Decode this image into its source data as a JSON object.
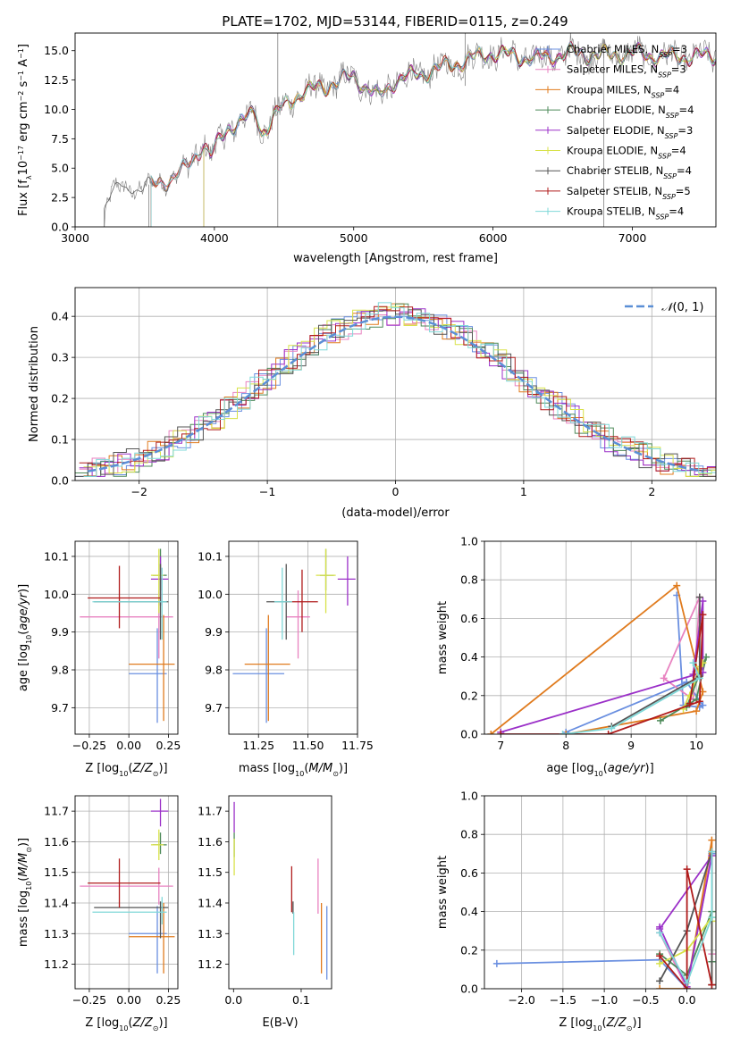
{
  "figure_title": "PLATE=1702, MJD=53144, FIBERID=0115, z=0.249",
  "colors": {
    "chabrier_miles": "#6a8fe0",
    "salpeter_miles": "#e882c0",
    "kroupa_miles": "#e07b1e",
    "chabrier_elodie": "#4e8a5a",
    "salpeter_elodie": "#9b30c8",
    "kroupa_elodie": "#d8e24a",
    "chabrier_stelib": "#555555",
    "salpeter_stelib": "#b01b1b",
    "kroupa_stelib": "#7fd8d8",
    "normal_curve": "#5b8fd6",
    "grid": "#b0b0b0",
    "data_spectrum": "#808080"
  },
  "chart_data": [
    {
      "id": "spectrum",
      "type": "line",
      "xlabel": "wavelength [Angstrom, rest frame]",
      "ylabel": "Flux [f_λ10^-17 erg cm^-2 s^-1 A^-1]",
      "xlim": [
        3000,
        7600
      ],
      "ylim": [
        0,
        16.5
      ],
      "xticks": [
        3000,
        4000,
        5000,
        6000,
        7000
      ],
      "yticks": [
        0.0,
        2.5,
        5.0,
        7.5,
        10.0,
        12.5,
        15.0
      ],
      "grid": false,
      "legend_position": "top-right",
      "spectrum_anchors": {
        "x": [
          3210,
          3260,
          3400,
          3550,
          3700,
          3800,
          3880,
          3920,
          3970,
          4100,
          4300,
          4340,
          4450,
          4600,
          4800,
          5000,
          5180,
          5300,
          5500,
          5700,
          5900,
          6000,
          6300,
          6560,
          6800,
          7000,
          7200
        ],
        "y": [
          1.6,
          3.1,
          3.3,
          3.5,
          4.2,
          5.0,
          6.3,
          7.2,
          6.0,
          8.5,
          9.6,
          8.0,
          9.7,
          11.3,
          12.0,
          12.8,
          11.0,
          12.5,
          13.1,
          13.8,
          14.5,
          14.8,
          14.3,
          14.8,
          14.6,
          14.8,
          14.5
        ]
      },
      "series": [
        {
          "name": "Chabrier MILES, N_SSP=3",
          "color_key": "chabrier_miles",
          "start": 3540
        },
        {
          "name": "Salpeter MILES, N_SSP=3",
          "color_key": "salpeter_miles",
          "start": 3540
        },
        {
          "name": "Kroupa MILES, N_SSP=4",
          "color_key": "kroupa_miles",
          "start": 3540
        },
        {
          "name": "Chabrier ELODIE, N_SSP=4",
          "color_key": "chabrier_elodie",
          "start": 3920
        },
        {
          "name": "Salpeter ELODIE, N_SSP=3",
          "color_key": "salpeter_elodie",
          "start": 3920
        },
        {
          "name": "Kroupa ELODIE, N_SSP=4",
          "color_key": "kroupa_elodie",
          "start": 3920
        },
        {
          "name": "Chabrier STELIB, N_SSP=4",
          "color_key": "chabrier_stelib",
          "start": 3210
        },
        {
          "name": "Salpeter STELIB, N_SSP=5",
          "color_key": "salpeter_stelib",
          "start": 3540
        },
        {
          "name": "Kroupa STELIB, N_SSP=4",
          "color_key": "kroupa_stelib",
          "start": 3540
        }
      ]
    },
    {
      "id": "residuals",
      "type": "histogram",
      "xlabel": "(data-model)/error",
      "ylabel": "Normed distribution",
      "xlim": [
        -2.5,
        2.5
      ],
      "ylim": [
        0,
        0.47
      ],
      "xticks": [
        -2,
        -1,
        0,
        1,
        2
      ],
      "yticks": [
        0.0,
        0.1,
        0.2,
        0.3,
        0.4
      ],
      "grid": true,
      "bin_width": 0.1,
      "legend": "N(0,1)",
      "legend_position": "top-right",
      "normal_curve": {
        "mean": 0,
        "sigma": 1,
        "x_range": [
          -2.4,
          2.4
        ]
      }
    },
    {
      "id": "age_vs_Z",
      "type": "errorbar",
      "xlabel": "Z [log10(Z/Z⊙)]",
      "ylabel": "age [log10(age/yr)]",
      "xlim": [
        -0.34,
        0.31
      ],
      "ylim": [
        9.63,
        10.14
      ],
      "xticks": [
        -0.25,
        0.0,
        0.25
      ],
      "xtick_labels": [
        "−0.25",
        "0.00",
        "0.25"
      ],
      "yticks": [
        9.7,
        9.8,
        9.9,
        10.0,
        10.1
      ],
      "grid": true,
      "points": [
        {
          "color_key": "chabrier_miles",
          "x": 0.18,
          "xerr": [
            0.18,
            0.06
          ],
          "y": 9.79,
          "yerr": [
            0.13,
            0.12
          ]
        },
        {
          "color_key": "salpeter_miles",
          "x": 0.19,
          "xerr": [
            0.5,
            0.09
          ],
          "y": 9.94,
          "yerr": [
            0.11,
            0.07
          ]
        },
        {
          "color_key": "kroupa_miles",
          "x": 0.22,
          "xerr": [
            0.22,
            0.07
          ],
          "y": 9.815,
          "yerr": [
            0.15,
            0.13
          ]
        },
        {
          "color_key": "chabrier_elodie",
          "x": 0.2,
          "xerr": [
            0.05,
            0.04
          ],
          "y": 10.05,
          "yerr": [
            0.04,
            0.07
          ]
        },
        {
          "color_key": "salpeter_elodie",
          "x": 0.2,
          "xerr": [
            0.06,
            0.05
          ],
          "y": 10.04,
          "yerr": [
            0.07,
            0.06
          ]
        },
        {
          "color_key": "kroupa_elodie",
          "x": 0.19,
          "xerr": [
            0.05,
            0.03
          ],
          "y": 10.05,
          "yerr": [
            0.1,
            0.07
          ]
        },
        {
          "color_key": "chabrier_stelib",
          "x": 0.2,
          "xerr": [
            0.42,
            0.05
          ],
          "y": 9.98,
          "yerr": [
            0.1,
            0.1
          ]
        },
        {
          "color_key": "salpeter_stelib",
          "x": -0.06,
          "xerr": [
            0.2,
            0.26
          ],
          "y": 9.99,
          "yerr": [
            0.08,
            0.085
          ]
        },
        {
          "color_key": "kroupa_stelib",
          "x": 0.21,
          "xerr": [
            0.44,
            0.03
          ],
          "y": 9.98,
          "yerr": [
            0.1,
            0.09
          ]
        }
      ]
    },
    {
      "id": "age_vs_mass",
      "type": "errorbar",
      "xlabel": "mass [log10(M/M⊙)]",
      "xlim": [
        11.1,
        11.75
      ],
      "ylim": [
        9.63,
        10.14
      ],
      "xticks": [
        11.25,
        11.5,
        11.75
      ],
      "xtick_labels": [
        "11.25",
        "11.50",
        "11.75"
      ],
      "yticks": [
        9.7,
        9.8,
        9.9,
        10.0,
        10.1
      ],
      "grid": true,
      "points": [
        {
          "color_key": "chabrier_miles",
          "x": 11.29,
          "xerr": [
            0.17,
            0.09
          ],
          "y": 9.79,
          "yerr": [
            0.13,
            0.12
          ]
        },
        {
          "color_key": "salpeter_miles",
          "x": 11.45,
          "xerr": [
            0.06,
            0.06
          ],
          "y": 9.94,
          "yerr": [
            0.11,
            0.07
          ]
        },
        {
          "color_key": "kroupa_miles",
          "x": 11.3,
          "xerr": [
            0.12,
            0.11
          ],
          "y": 9.815,
          "yerr": [
            0.15,
            0.13
          ]
        },
        {
          "color_key": "chabrier_elodie",
          "x": 11.59,
          "xerr": [
            0.03,
            0.04
          ],
          "y": 10.05,
          "yerr": [
            0.04,
            0.07
          ]
        },
        {
          "color_key": "salpeter_elodie",
          "x": 11.7,
          "xerr": [
            0.05,
            0.04
          ],
          "y": 10.04,
          "yerr": [
            0.07,
            0.06
          ]
        },
        {
          "color_key": "kroupa_elodie",
          "x": 11.59,
          "xerr": [
            0.05,
            0.05
          ],
          "y": 10.05,
          "yerr": [
            0.1,
            0.07
          ]
        },
        {
          "color_key": "chabrier_stelib",
          "x": 11.39,
          "xerr": [
            0.1,
            0.02
          ],
          "y": 9.98,
          "yerr": [
            0.1,
            0.1
          ]
        },
        {
          "color_key": "salpeter_stelib",
          "x": 11.47,
          "xerr": [
            0.08,
            0.08
          ],
          "y": 9.98,
          "yerr": [
            0.08,
            0.085
          ]
        },
        {
          "color_key": "kroupa_stelib",
          "x": 11.37,
          "xerr": [
            0.04,
            0.05
          ],
          "y": 9.98,
          "yerr": [
            0.1,
            0.09
          ]
        }
      ]
    },
    {
      "id": "mass_weight_vs_age",
      "type": "line",
      "xlabel": "age [log10(age/yr)]",
      "ylabel": "mass weight",
      "xlim": [
        6.75,
        10.3
      ],
      "ylim": [
        0,
        1.0
      ],
      "xticks": [
        7,
        8,
        9,
        10
      ],
      "yticks": [
        0.0,
        0.2,
        0.4,
        0.6,
        0.8,
        1.0
      ],
      "grid": true,
      "series": [
        {
          "color_key": "chabrier_miles",
          "x": [
            9.7,
            9.8,
            10.05,
            10.1,
            9.85,
            8.0
          ],
          "y": [
            0.72,
            0.15,
            0.14,
            0.15,
            0.27,
            0.01
          ]
        },
        {
          "color_key": "salpeter_miles",
          "x": [
            10.05,
            9.5,
            9.95,
            10.05
          ],
          "y": [
            0.71,
            0.29,
            0.18,
            0.71
          ]
        },
        {
          "color_key": "kroupa_miles",
          "x": [
            6.85,
            9.7,
            10.1,
            10.0,
            8.0
          ],
          "y": [
            0.0,
            0.77,
            0.22,
            0.12,
            0.0
          ]
        },
        {
          "color_key": "chabrier_elodie",
          "x": [
            9.45,
            10.0,
            10.15,
            9.85
          ],
          "y": [
            0.07,
            0.18,
            0.4,
            0.14
          ]
        },
        {
          "color_key": "salpeter_elodie",
          "x": [
            7.0,
            10.1,
            10.1,
            9.95
          ],
          "y": [
            0.01,
            0.32,
            0.69,
            0.31
          ]
        },
        {
          "color_key": "kroupa_elodie",
          "x": [
            9.8,
            10.1,
            10.05,
            9.9
          ],
          "y": [
            0.13,
            0.37,
            0.35,
            0.2
          ]
        },
        {
          "color_key": "chabrier_stelib",
          "x": [
            8.7,
            10.05,
            10.05
          ],
          "y": [
            0.04,
            0.3,
            0.71
          ]
        },
        {
          "color_key": "salpeter_stelib",
          "x": [
            7.0,
            8.65,
            10.05,
            10.1,
            9.9
          ],
          "y": [
            0.0,
            0.0,
            0.17,
            0.62,
            0.16
          ]
        },
        {
          "color_key": "kroupa_stelib",
          "x": [
            7.95,
            8.7,
            10.05,
            9.95
          ],
          "y": [
            0.0,
            0.03,
            0.29,
            0.37
          ]
        }
      ]
    },
    {
      "id": "mass_vs_Z",
      "type": "errorbar",
      "xlabel": "Z [log10(Z/Z⊙)]",
      "ylabel": "mass [log10(M/M⊙)]",
      "xlim": [
        -0.34,
        0.31
      ],
      "ylim": [
        11.12,
        11.75
      ],
      "xticks": [
        -0.25,
        0.0,
        0.25
      ],
      "xtick_labels": [
        "−0.25",
        "0.00",
        "0.25"
      ],
      "yticks": [
        11.2,
        11.3,
        11.4,
        11.5,
        11.6,
        11.7
      ],
      "grid": true,
      "points": [
        {
          "color_key": "chabrier_miles",
          "x": 0.18,
          "xerr": [
            0.18,
            0.06
          ],
          "y": 11.3,
          "yerr": [
            0.13,
            0.09
          ]
        },
        {
          "color_key": "salpeter_miles",
          "x": 0.19,
          "xerr": [
            0.5,
            0.09
          ],
          "y": 11.455,
          "yerr": [
            0.06,
            0.06
          ]
        },
        {
          "color_key": "kroupa_miles",
          "x": 0.22,
          "xerr": [
            0.22,
            0.07
          ],
          "y": 11.29,
          "yerr": [
            0.12,
            0.11
          ]
        },
        {
          "color_key": "chabrier_elodie",
          "x": 0.2,
          "xerr": [
            0.05,
            0.04
          ],
          "y": 11.59,
          "yerr": [
            0.03,
            0.04
          ]
        },
        {
          "color_key": "salpeter_elodie",
          "x": 0.2,
          "xerr": [
            0.06,
            0.05
          ],
          "y": 11.7,
          "yerr": [
            0.05,
            0.04
          ]
        },
        {
          "color_key": "kroupa_elodie",
          "x": 0.19,
          "xerr": [
            0.05,
            0.03
          ],
          "y": 11.59,
          "yerr": [
            0.05,
            0.05
          ]
        },
        {
          "color_key": "chabrier_stelib",
          "x": 0.2,
          "xerr": [
            0.42,
            0.05
          ],
          "y": 11.385,
          "yerr": [
            0.1,
            0.02
          ]
        },
        {
          "color_key": "salpeter_stelib",
          "x": -0.06,
          "xerr": [
            0.2,
            0.26
          ],
          "y": 11.465,
          "yerr": [
            0.08,
            0.08
          ]
        },
        {
          "color_key": "kroupa_stelib",
          "x": 0.21,
          "xerr": [
            0.44,
            0.03
          ],
          "y": 11.37,
          "yerr": [
            0.04,
            0.05
          ]
        }
      ]
    },
    {
      "id": "mass_vs_ebv",
      "type": "errorbar",
      "xlabel": "E(B-V)",
      "xlim": [
        -0.007,
        0.145
      ],
      "ylim": [
        11.12,
        11.75
      ],
      "xticks": [
        0.0,
        0.1
      ],
      "xtick_labels": [
        "0.0",
        "0.1"
      ],
      "yticks": [
        11.2,
        11.3,
        11.4,
        11.5,
        11.6,
        11.7
      ],
      "grid": false,
      "points": [
        {
          "color_key": "chabrier_miles",
          "x": 0.138,
          "y": 11.3,
          "yerr": [
            0.15,
            0.09
          ]
        },
        {
          "color_key": "salpeter_miles",
          "x": 0.125,
          "y": 11.455,
          "yerr": [
            0.09,
            0.09
          ]
        },
        {
          "color_key": "kroupa_miles",
          "x": 0.13,
          "y": 11.29,
          "yerr": [
            0.12,
            0.11
          ]
        },
        {
          "color_key": "chabrier_elodie",
          "x": 0.001,
          "y": 11.59,
          "yerr": [
            0.04,
            0.04
          ]
        },
        {
          "color_key": "salpeter_elodie",
          "x": 0.001,
          "y": 11.68,
          "yerr": [
            0.05,
            0.05
          ]
        },
        {
          "color_key": "kroupa_elodie",
          "x": 0.001,
          "y": 11.55,
          "yerr": [
            0.06,
            0.06
          ]
        },
        {
          "color_key": "chabrier_stelib",
          "x": 0.088,
          "y": 11.385,
          "yerr": [
            0.02,
            0.02
          ]
        },
        {
          "color_key": "salpeter_stelib",
          "x": 0.086,
          "y": 11.44,
          "yerr": [
            0.07,
            0.08
          ]
        },
        {
          "color_key": "kroupa_stelib",
          "x": 0.089,
          "y": 11.3,
          "yerr": [
            0.07,
            0.07
          ]
        }
      ]
    },
    {
      "id": "mass_weight_vs_Z",
      "type": "line",
      "xlabel": "Z [log10(Z/Z⊙)]",
      "ylabel": "mass weight",
      "xlim": [
        -2.45,
        0.35
      ],
      "ylim": [
        0,
        1.0
      ],
      "xticks": [
        -2.0,
        -1.5,
        -1.0,
        -0.5,
        0.0
      ],
      "xtick_labels": [
        "−2.0",
        "−1.5",
        "−1.0",
        "−0.5",
        "0.0"
      ],
      "yticks": [
        0.0,
        0.2,
        0.4,
        0.6,
        0.8,
        1.0
      ],
      "grid": true,
      "series": [
        {
          "color_key": "chabrier_miles",
          "x": [
            -2.3,
            -0.33,
            0.0,
            0.3,
            0.3
          ],
          "y": [
            0.13,
            0.15,
            0.0,
            0.7,
            0.02
          ]
        },
        {
          "color_key": "salpeter_miles",
          "x": [
            -0.33,
            0.0,
            0.3,
            0.3
          ],
          "y": [
            0.29,
            0.0,
            0.71,
            0.18
          ]
        },
        {
          "color_key": "kroupa_miles",
          "x": [
            -0.33,
            0.0,
            0.3,
            0.3
          ],
          "y": [
            0.0,
            0.0,
            0.77,
            0.02
          ]
        },
        {
          "color_key": "chabrier_elodie",
          "x": [
            -0.33,
            0.0,
            0.3,
            0.3
          ],
          "y": [
            0.18,
            0.07,
            0.4,
            0.14
          ]
        },
        {
          "color_key": "salpeter_elodie",
          "x": [
            -0.33,
            0.0,
            0.3,
            -0.33
          ],
          "y": [
            0.32,
            0.01,
            0.69,
            0.31
          ]
        },
        {
          "color_key": "kroupa_elodie",
          "x": [
            -0.33,
            0.0,
            0.3,
            0.3
          ],
          "y": [
            0.13,
            0.2,
            0.37,
            0.35
          ]
        },
        {
          "color_key": "chabrier_stelib",
          "x": [
            -0.33,
            0.0,
            0.3,
            0.3
          ],
          "y": [
            0.04,
            0.3,
            0.71,
            0.02
          ]
        },
        {
          "color_key": "salpeter_stelib",
          "x": [
            -0.33,
            0.0,
            0.0,
            0.3
          ],
          "y": [
            0.17,
            0.0,
            0.62,
            0.02
          ]
        },
        {
          "color_key": "kroupa_stelib",
          "x": [
            -0.33,
            0.0,
            0.3,
            0.3
          ],
          "y": [
            0.29,
            0.03,
            0.37,
            0.71
          ]
        }
      ]
    }
  ]
}
